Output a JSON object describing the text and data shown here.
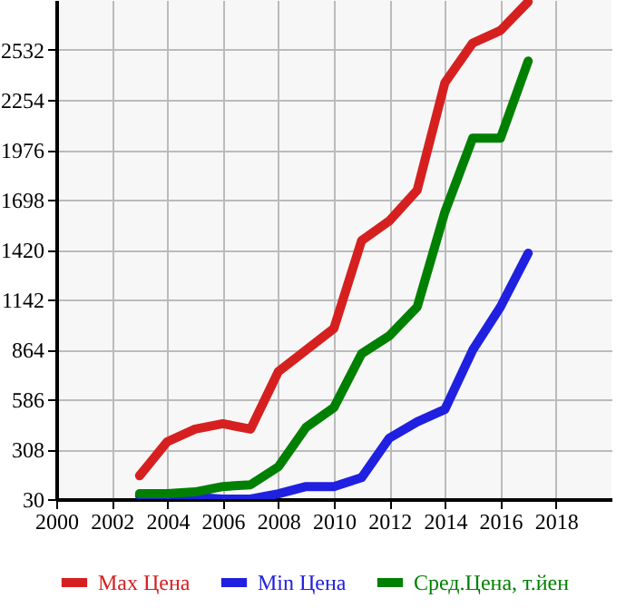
{
  "chart_data": {
    "type": "line",
    "x": [
      2003,
      2004,
      2005,
      2006,
      2007,
      2008,
      2009,
      2010,
      2011,
      2012,
      2013,
      2014,
      2015,
      2016,
      2017
    ],
    "series": [
      {
        "name": "Max Цена",
        "color": "#d62020",
        "values": [
          160,
          350,
          420,
          450,
          420,
          740,
          860,
          980,
          1470,
          1580,
          1750,
          2350,
          2570,
          2640,
          2800
        ]
      },
      {
        "name": "Min Цена",
        "color": "#2020e0",
        "values": [
          50,
          50,
          40,
          30,
          30,
          60,
          100,
          100,
          150,
          370,
          460,
          530,
          860,
          1100,
          1400
        ]
      },
      {
        "name": "Сред.Цена, т.йен",
        "color": "#008000",
        "values": [
          60,
          60,
          70,
          100,
          110,
          210,
          430,
          540,
          840,
          940,
          1100,
          1630,
          2040,
          2040,
          2470
        ]
      }
    ],
    "xlim": [
      2000,
      2020
    ],
    "xticks": [
      2000,
      2002,
      2004,
      2006,
      2008,
      2010,
      2012,
      2014,
      2016,
      2018
    ],
    "ylim": [
      30,
      2810
    ],
    "yticks": [
      30,
      308,
      586,
      864,
      1142,
      1420,
      1698,
      1976,
      2254,
      2532
    ],
    "grid": true,
    "legend": "bottom"
  }
}
